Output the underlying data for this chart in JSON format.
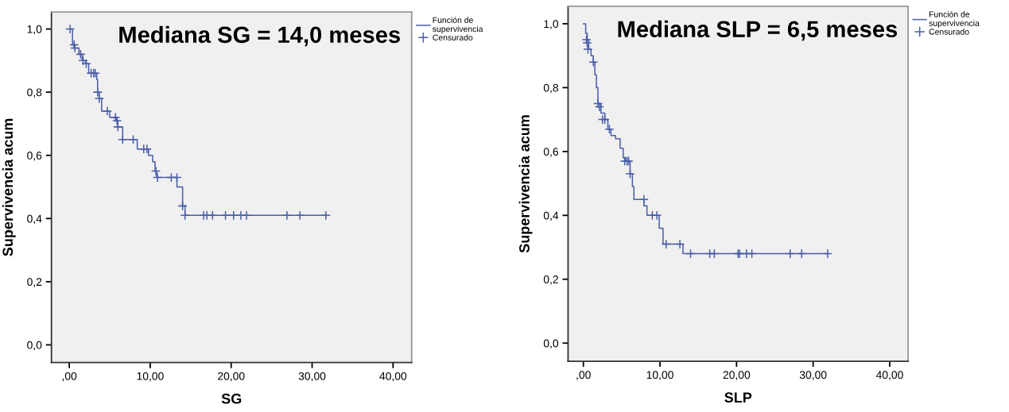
{
  "chart_data": [
    {
      "type": "step",
      "xlabel": "SG",
      "ylabel": "Supervivencia acum",
      "annotations": [
        "Mediana SG = 14,0 meses"
      ],
      "xlim": [
        -2.2,
        42.3
      ],
      "ylim": [
        -0.056,
        1.054
      ],
      "xticks": [
        {
          "value": 0,
          "label": ",00"
        },
        {
          "value": 10,
          "label": "10,00"
        },
        {
          "value": 20,
          "label": "20,00"
        },
        {
          "value": 30,
          "label": "30,00"
        },
        {
          "value": 40,
          "label": "40,00"
        }
      ],
      "yticks": [
        {
          "value": 0,
          "label": "0,0"
        },
        {
          "value": 0.2,
          "label": "0,2"
        },
        {
          "value": 0.4,
          "label": "0,4"
        },
        {
          "value": 0.6,
          "label": "0,6"
        },
        {
          "value": 0.8,
          "label": "0,8"
        },
        {
          "value": 1.0,
          "label": "1,0"
        }
      ],
      "grid": false,
      "legend": "top right",
      "series": [
        {
          "name": "Función de supervivencia",
          "color": "#4a5ea8",
          "x": [
            0,
            0.4,
            0.6,
            1.2,
            1.6,
            2.0,
            2.4,
            3.4,
            3.5,
            3.7,
            4.0,
            5.0,
            5.8,
            6.0,
            6.6,
            8.4,
            9.8,
            10.3,
            10.6,
            10.8,
            13.3,
            14.0,
            14.3,
            31.7
          ],
          "values": [
            1.0,
            0.95,
            0.94,
            0.92,
            0.9,
            0.89,
            0.86,
            0.84,
            0.8,
            0.78,
            0.74,
            0.72,
            0.71,
            0.69,
            0.65,
            0.62,
            0.6,
            0.58,
            0.55,
            0.53,
            0.5,
            0.44,
            0.41,
            0.41
          ]
        },
        {
          "name": "Censurado",
          "type": "scatter",
          "marker": "cross",
          "color": "#4a5ea8",
          "x": [
            0.1,
            0.6,
            0.7,
            1.4,
            1.7,
            2.1,
            2.7,
            3.0,
            3.2,
            3.5,
            3.7,
            4.7,
            5.7,
            5.9,
            6.0,
            6.6,
            7.9,
            9.2,
            9.6,
            10.7,
            10.9,
            12.6,
            13.3,
            14.0,
            14.3,
            16.6,
            17.0,
            17.7,
            19.3,
            20.3,
            21.2,
            21.9,
            26.9,
            28.5,
            31.7
          ],
          "values": [
            1.0,
            0.95,
            0.94,
            0.92,
            0.9,
            0.89,
            0.86,
            0.86,
            0.86,
            0.8,
            0.78,
            0.74,
            0.72,
            0.71,
            0.69,
            0.65,
            0.65,
            0.62,
            0.62,
            0.55,
            0.53,
            0.53,
            0.53,
            0.44,
            0.41,
            0.41,
            0.41,
            0.41,
            0.41,
            0.41,
            0.41,
            0.41,
            0.41,
            0.41,
            0.41
          ]
        }
      ]
    },
    {
      "type": "step",
      "xlabel": "SLP",
      "ylabel": "Supervivencia acum",
      "annotations": [
        "Mediana SLP = 6,5 meses"
      ],
      "xlim": [
        -2.0,
        42.4
      ],
      "ylim": [
        -0.057,
        1.055
      ],
      "xticks": [
        {
          "value": 0,
          "label": ",00"
        },
        {
          "value": 10,
          "label": "10,00"
        },
        {
          "value": 20,
          "label": "20,00"
        },
        {
          "value": 30,
          "label": "30,00"
        },
        {
          "value": 40,
          "label": "40,00"
        }
      ],
      "yticks": [
        {
          "value": 0,
          "label": "0,0"
        },
        {
          "value": 0.2,
          "label": "0,2"
        },
        {
          "value": 0.4,
          "label": "0,4"
        },
        {
          "value": 0.6,
          "label": "0,6"
        },
        {
          "value": 0.8,
          "label": "0,8"
        },
        {
          "value": 1.0,
          "label": "1,0"
        }
      ],
      "grid": false,
      "legend": "top right",
      "series": [
        {
          "name": "Función de supervivencia",
          "color": "#4a5ea8",
          "x": [
            0,
            0.3,
            0.5,
            0.7,
            1.0,
            1.3,
            1.5,
            1.7,
            1.9,
            2.3,
            2.8,
            3.2,
            3.6,
            4.2,
            4.8,
            5.2,
            5.5,
            6.1,
            6.4,
            6.6,
            7.9,
            8.3,
            9.9,
            10.4,
            13.0,
            31.9
          ],
          "values": [
            1.0,
            0.97,
            0.95,
            0.92,
            0.9,
            0.88,
            0.84,
            0.8,
            0.75,
            0.72,
            0.7,
            0.67,
            0.65,
            0.64,
            0.61,
            0.58,
            0.57,
            0.53,
            0.49,
            0.45,
            0.43,
            0.4,
            0.36,
            0.31,
            0.28,
            0.28
          ]
        },
        {
          "name": "Censurado",
          "type": "scatter",
          "marker": "cross",
          "color": "#4a5ea8",
          "x": [
            0.4,
            0.5,
            0.6,
            1.3,
            1.9,
            2.1,
            2.5,
            2.8,
            3.4,
            5.4,
            5.7,
            5.9,
            6.1,
            7.9,
            9.0,
            9.6,
            10.8,
            12.6,
            14.0,
            16.5,
            17.1,
            20.2,
            20.4,
            21.3,
            22.0,
            27.0,
            28.5,
            31.9
          ],
          "values": [
            0.95,
            0.94,
            0.92,
            0.88,
            0.75,
            0.74,
            0.7,
            0.7,
            0.67,
            0.57,
            0.57,
            0.57,
            0.53,
            0.45,
            0.4,
            0.4,
            0.31,
            0.31,
            0.28,
            0.28,
            0.28,
            0.28,
            0.28,
            0.28,
            0.28,
            0.28,
            0.28,
            0.28
          ]
        }
      ]
    }
  ]
}
